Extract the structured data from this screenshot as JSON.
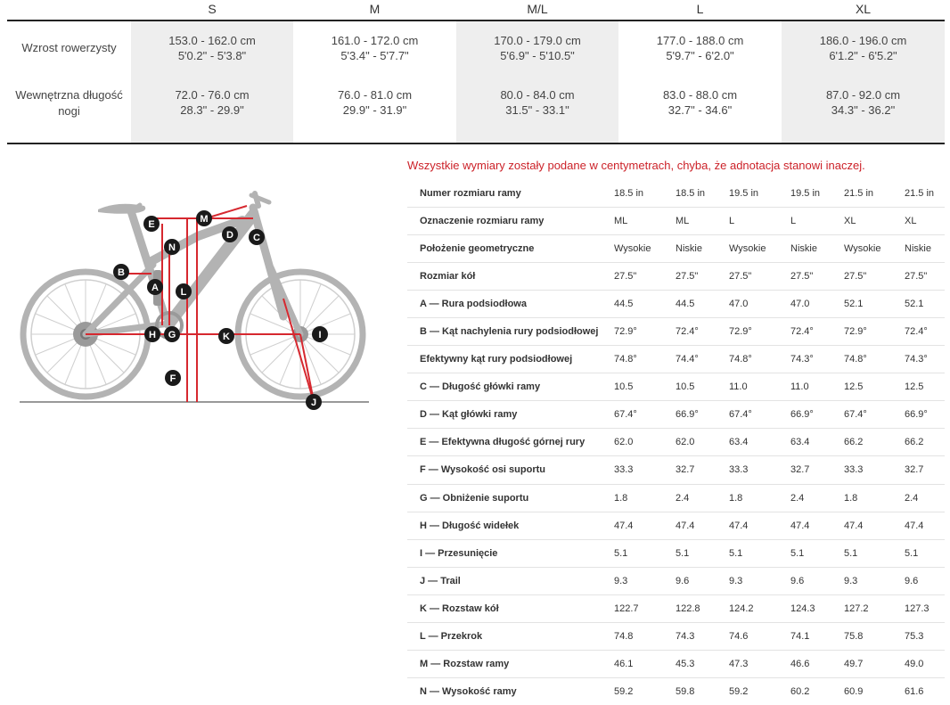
{
  "size_chart": {
    "sizes": [
      "S",
      "M",
      "M/L",
      "L",
      "XL"
    ],
    "rows": [
      {
        "label": "Wzrost rowerzysty",
        "values": [
          {
            "cm": "153.0 - 162.0 cm",
            "in": "5'0.2\" - 5'3.8\""
          },
          {
            "cm": "161.0 - 172.0 cm",
            "in": "5'3.4\" - 5'7.7\""
          },
          {
            "cm": "170.0 - 179.0 cm",
            "in": "5'6.9\" - 5'10.5\""
          },
          {
            "cm": "177.0 - 188.0 cm",
            "in": "5'9.7\" - 6'2.0\""
          },
          {
            "cm": "186.0 - 196.0 cm",
            "in": "6'1.2\" - 6'5.2\""
          }
        ]
      },
      {
        "label_line1": "Wewnętrzna długość",
        "label_line2": "nogi",
        "values": [
          {
            "cm": "72.0 - 76.0 cm",
            "in": "28.3\" - 29.9\""
          },
          {
            "cm": "76.0 - 81.0 cm",
            "in": "29.9\" - 31.9\""
          },
          {
            "cm": "80.0 - 84.0 cm",
            "in": "31.5\" - 33.1\""
          },
          {
            "cm": "83.0 - 88.0 cm",
            "in": "32.7\" - 34.6\""
          },
          {
            "cm": "87.0 - 92.0 cm",
            "in": "34.3\" - 36.2\""
          }
        ]
      }
    ]
  },
  "diagram": {
    "markers": [
      "A",
      "B",
      "C",
      "D",
      "E",
      "F",
      "G",
      "H",
      "I",
      "J",
      "K",
      "L",
      "M",
      "N"
    ],
    "colors": {
      "frame": "#b3b3b3",
      "line": "#d6282f",
      "badge": "#1a1a1a",
      "ground": "#999999"
    }
  },
  "geometry": {
    "note": "Wszystkie wymiary zostały podane w centymetrach, chyba, że adnotacja stanowi inaczej.",
    "rows": [
      {
        "label": "Numer rozmiaru ramy",
        "values": [
          "18.5 in",
          "18.5 in",
          "19.5 in",
          "19.5 in",
          "21.5 in",
          "21.5 in"
        ]
      },
      {
        "label": "Oznaczenie rozmiaru ramy",
        "values": [
          "ML",
          "ML",
          "L",
          "L",
          "XL",
          "XL"
        ]
      },
      {
        "label": "Położenie geometryczne",
        "values": [
          "Wysokie",
          "Niskie",
          "Wysokie",
          "Niskie",
          "Wysokie",
          "Niskie"
        ]
      },
      {
        "label": "Rozmiar kół",
        "values": [
          "27.5\"",
          "27.5\"",
          "27.5\"",
          "27.5\"",
          "27.5\"",
          "27.5\""
        ]
      },
      {
        "label": "A — Rura podsiodłowa",
        "values": [
          "44.5",
          "44.5",
          "47.0",
          "47.0",
          "52.1",
          "52.1"
        ]
      },
      {
        "label": "B — Kąt nachylenia rury podsiodłowej",
        "values": [
          "72.9°",
          "72.4°",
          "72.9°",
          "72.4°",
          "72.9°",
          "72.4°"
        ]
      },
      {
        "label": "Efektywny kąt rury podsiodłowej",
        "values": [
          "74.8°",
          "74.4°",
          "74.8°",
          "74.3°",
          "74.8°",
          "74.3°"
        ]
      },
      {
        "label": "C — Długość główki ramy",
        "values": [
          "10.5",
          "10.5",
          "11.0",
          "11.0",
          "12.5",
          "12.5"
        ]
      },
      {
        "label": "D — Kąt główki ramy",
        "values": [
          "67.4°",
          "66.9°",
          "67.4°",
          "66.9°",
          "67.4°",
          "66.9°"
        ]
      },
      {
        "label": "E — Efektywna długość górnej rury",
        "values": [
          "62.0",
          "62.0",
          "63.4",
          "63.4",
          "66.2",
          "66.2"
        ]
      },
      {
        "label": "F — Wysokość osi suportu",
        "values": [
          "33.3",
          "32.7",
          "33.3",
          "32.7",
          "33.3",
          "32.7"
        ]
      },
      {
        "label": "G — Obniżenie suportu",
        "values": [
          "1.8",
          "2.4",
          "1.8",
          "2.4",
          "1.8",
          "2.4"
        ]
      },
      {
        "label": "H — Długość widełek",
        "values": [
          "47.4",
          "47.4",
          "47.4",
          "47.4",
          "47.4",
          "47.4"
        ]
      },
      {
        "label": "I — Przesunięcie",
        "values": [
          "5.1",
          "5.1",
          "5.1",
          "5.1",
          "5.1",
          "5.1"
        ]
      },
      {
        "label": "J — Trail",
        "values": [
          "9.3",
          "9.6",
          "9.3",
          "9.6",
          "9.3",
          "9.6"
        ]
      },
      {
        "label": "K — Rozstaw kół",
        "values": [
          "122.7",
          "122.8",
          "124.2",
          "124.3",
          "127.2",
          "127.3"
        ]
      },
      {
        "label": "L — Przekrok",
        "values": [
          "74.8",
          "74.3",
          "74.6",
          "74.1",
          "75.8",
          "75.3"
        ]
      },
      {
        "label": "M — Rozstaw ramy",
        "values": [
          "46.1",
          "45.3",
          "47.3",
          "46.6",
          "49.7",
          "49.0"
        ]
      },
      {
        "label": "N — Wysokość ramy",
        "values": [
          "59.2",
          "59.8",
          "59.2",
          "60.2",
          "60.9",
          "61.6"
        ]
      }
    ]
  }
}
